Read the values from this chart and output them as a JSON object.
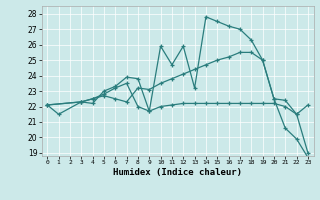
{
  "xlabel": "Humidex (Indice chaleur)",
  "xlim": [
    -0.5,
    23.5
  ],
  "ylim": [
    18.8,
    28.5
  ],
  "yticks": [
    19,
    20,
    21,
    22,
    23,
    24,
    25,
    26,
    27,
    28
  ],
  "xticks": [
    0,
    1,
    2,
    3,
    4,
    5,
    6,
    7,
    8,
    9,
    10,
    11,
    12,
    13,
    14,
    15,
    16,
    17,
    18,
    19,
    20,
    21,
    22,
    23
  ],
  "background_color": "#cce9e9",
  "line_color": "#2a7d7d",
  "lines": [
    {
      "x": [
        0,
        1,
        3,
        4,
        5,
        6,
        7,
        8,
        9,
        10,
        11,
        12,
        13,
        14,
        15,
        16,
        17,
        18,
        19,
        20,
        21,
        22,
        23
      ],
      "y": [
        22.1,
        21.5,
        22.3,
        22.2,
        23.0,
        23.3,
        23.9,
        23.8,
        21.7,
        25.9,
        24.7,
        25.9,
        23.2,
        27.8,
        27.5,
        27.2,
        27.0,
        26.3,
        25.0,
        22.5,
        20.6,
        19.9,
        18.7
      ]
    },
    {
      "x": [
        0,
        3,
        4,
        5,
        6,
        7,
        8,
        9,
        10,
        11,
        12,
        13,
        14,
        15,
        16,
        17,
        18,
        19,
        20,
        21,
        22,
        23
      ],
      "y": [
        22.1,
        22.3,
        22.5,
        22.7,
        22.5,
        22.3,
        23.2,
        23.1,
        23.5,
        23.8,
        24.1,
        24.4,
        24.7,
        25.0,
        25.2,
        25.5,
        25.5,
        25.0,
        22.5,
        22.4,
        21.5,
        22.1
      ]
    },
    {
      "x": [
        0,
        3,
        4,
        5,
        6,
        7,
        8,
        9,
        10,
        11,
        12,
        13,
        14,
        15,
        16,
        17,
        18,
        19,
        20,
        21,
        22,
        23
      ],
      "y": [
        22.1,
        22.3,
        22.5,
        22.8,
        23.2,
        23.5,
        22.0,
        21.7,
        22.0,
        22.1,
        22.2,
        22.2,
        22.2,
        22.2,
        22.2,
        22.2,
        22.2,
        22.2,
        22.2,
        22.0,
        21.5,
        19.0
      ]
    }
  ]
}
